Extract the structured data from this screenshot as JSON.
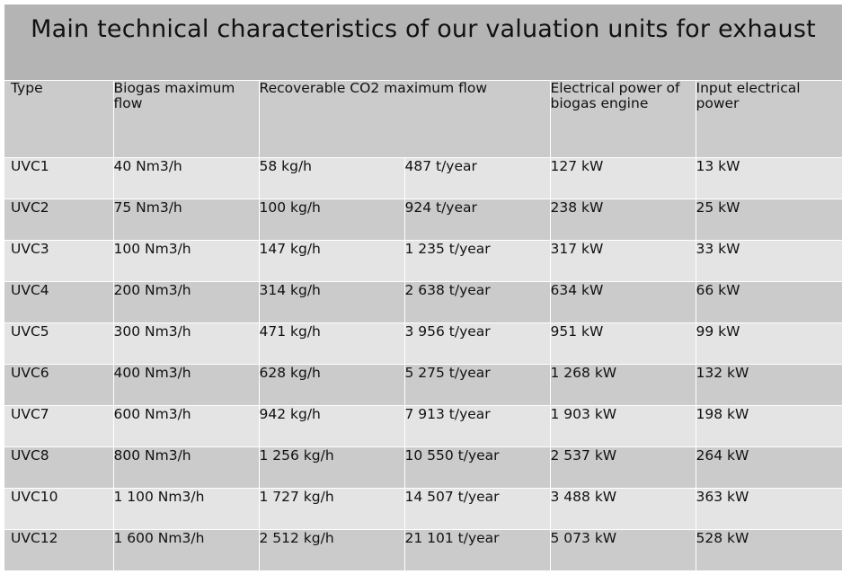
{
  "title": "Main technical characteristics of our valuation units for exhaust",
  "headers": {
    "type": "Type",
    "biogas_flow": "Biogas maximum flow",
    "co2_flow": "Recoverable CO2 maximum flow",
    "engine_power": "Electrical power of biogas engine",
    "input_power": "Input electrical power"
  },
  "rows": [
    {
      "type": "UVC1",
      "biogas": "40 Nm3/h",
      "co2_kgh": "58 kg/h",
      "co2_year": "487 t/year",
      "engine": "127 kW",
      "input": "13 kW"
    },
    {
      "type": "UVC2",
      "biogas": "75 Nm3/h",
      "co2_kgh": "100 kg/h",
      "co2_year": "924 t/year",
      "engine": "238 kW",
      "input": "25 kW"
    },
    {
      "type": "UVC3",
      "biogas": "100 Nm3/h",
      "co2_kgh": "147 kg/h",
      "co2_year": "1 235 t/year",
      "engine": "317 kW",
      "input": "33 kW"
    },
    {
      "type": "UVC4",
      "biogas": "200 Nm3/h",
      "co2_kgh": "314 kg/h",
      "co2_year": "2 638 t/year",
      "engine": "634 kW",
      "input": "66 kW"
    },
    {
      "type": "UVC5",
      "biogas": "300 Nm3/h",
      "co2_kgh": "471 kg/h",
      "co2_year": "3 956 t/year",
      "engine": "951 kW",
      "input": "99 kW"
    },
    {
      "type": "UVC6",
      "biogas": "400 Nm3/h",
      "co2_kgh": "628 kg/h",
      "co2_year": "5 275 t/year",
      "engine": "1 268 kW",
      "input": "132 kW"
    },
    {
      "type": "UVC7",
      "biogas": "600 Nm3/h",
      "co2_kgh": "942 kg/h",
      "co2_year": "7 913 t/year",
      "engine": "1 903 kW",
      "input": "198 kW"
    },
    {
      "type": "UVC8",
      "biogas": "800 Nm3/h",
      "co2_kgh": "1 256 kg/h",
      "co2_year": "10 550 t/year",
      "engine": "2 537 kW",
      "input": "264 kW"
    },
    {
      "type": "UVC10",
      "biogas": "1 100 Nm3/h",
      "co2_kgh": "1 727 kg/h",
      "co2_year": "14 507 t/year",
      "engine": "3 488 kW",
      "input": "363 kW"
    },
    {
      "type": "UVC12",
      "biogas": "1 600 Nm3/h",
      "co2_kgh": "2 512 kg/h",
      "co2_year": "21 101 t/year",
      "engine": "5 073 kW",
      "input": "528 kW"
    }
  ],
  "colors": {
    "title_bg": "#b4b4b4",
    "header_bg": "#cbcbcb",
    "row_light": "#e4e4e4",
    "row_dark": "#cbcbcb",
    "grid_lines": "#ffffff"
  }
}
